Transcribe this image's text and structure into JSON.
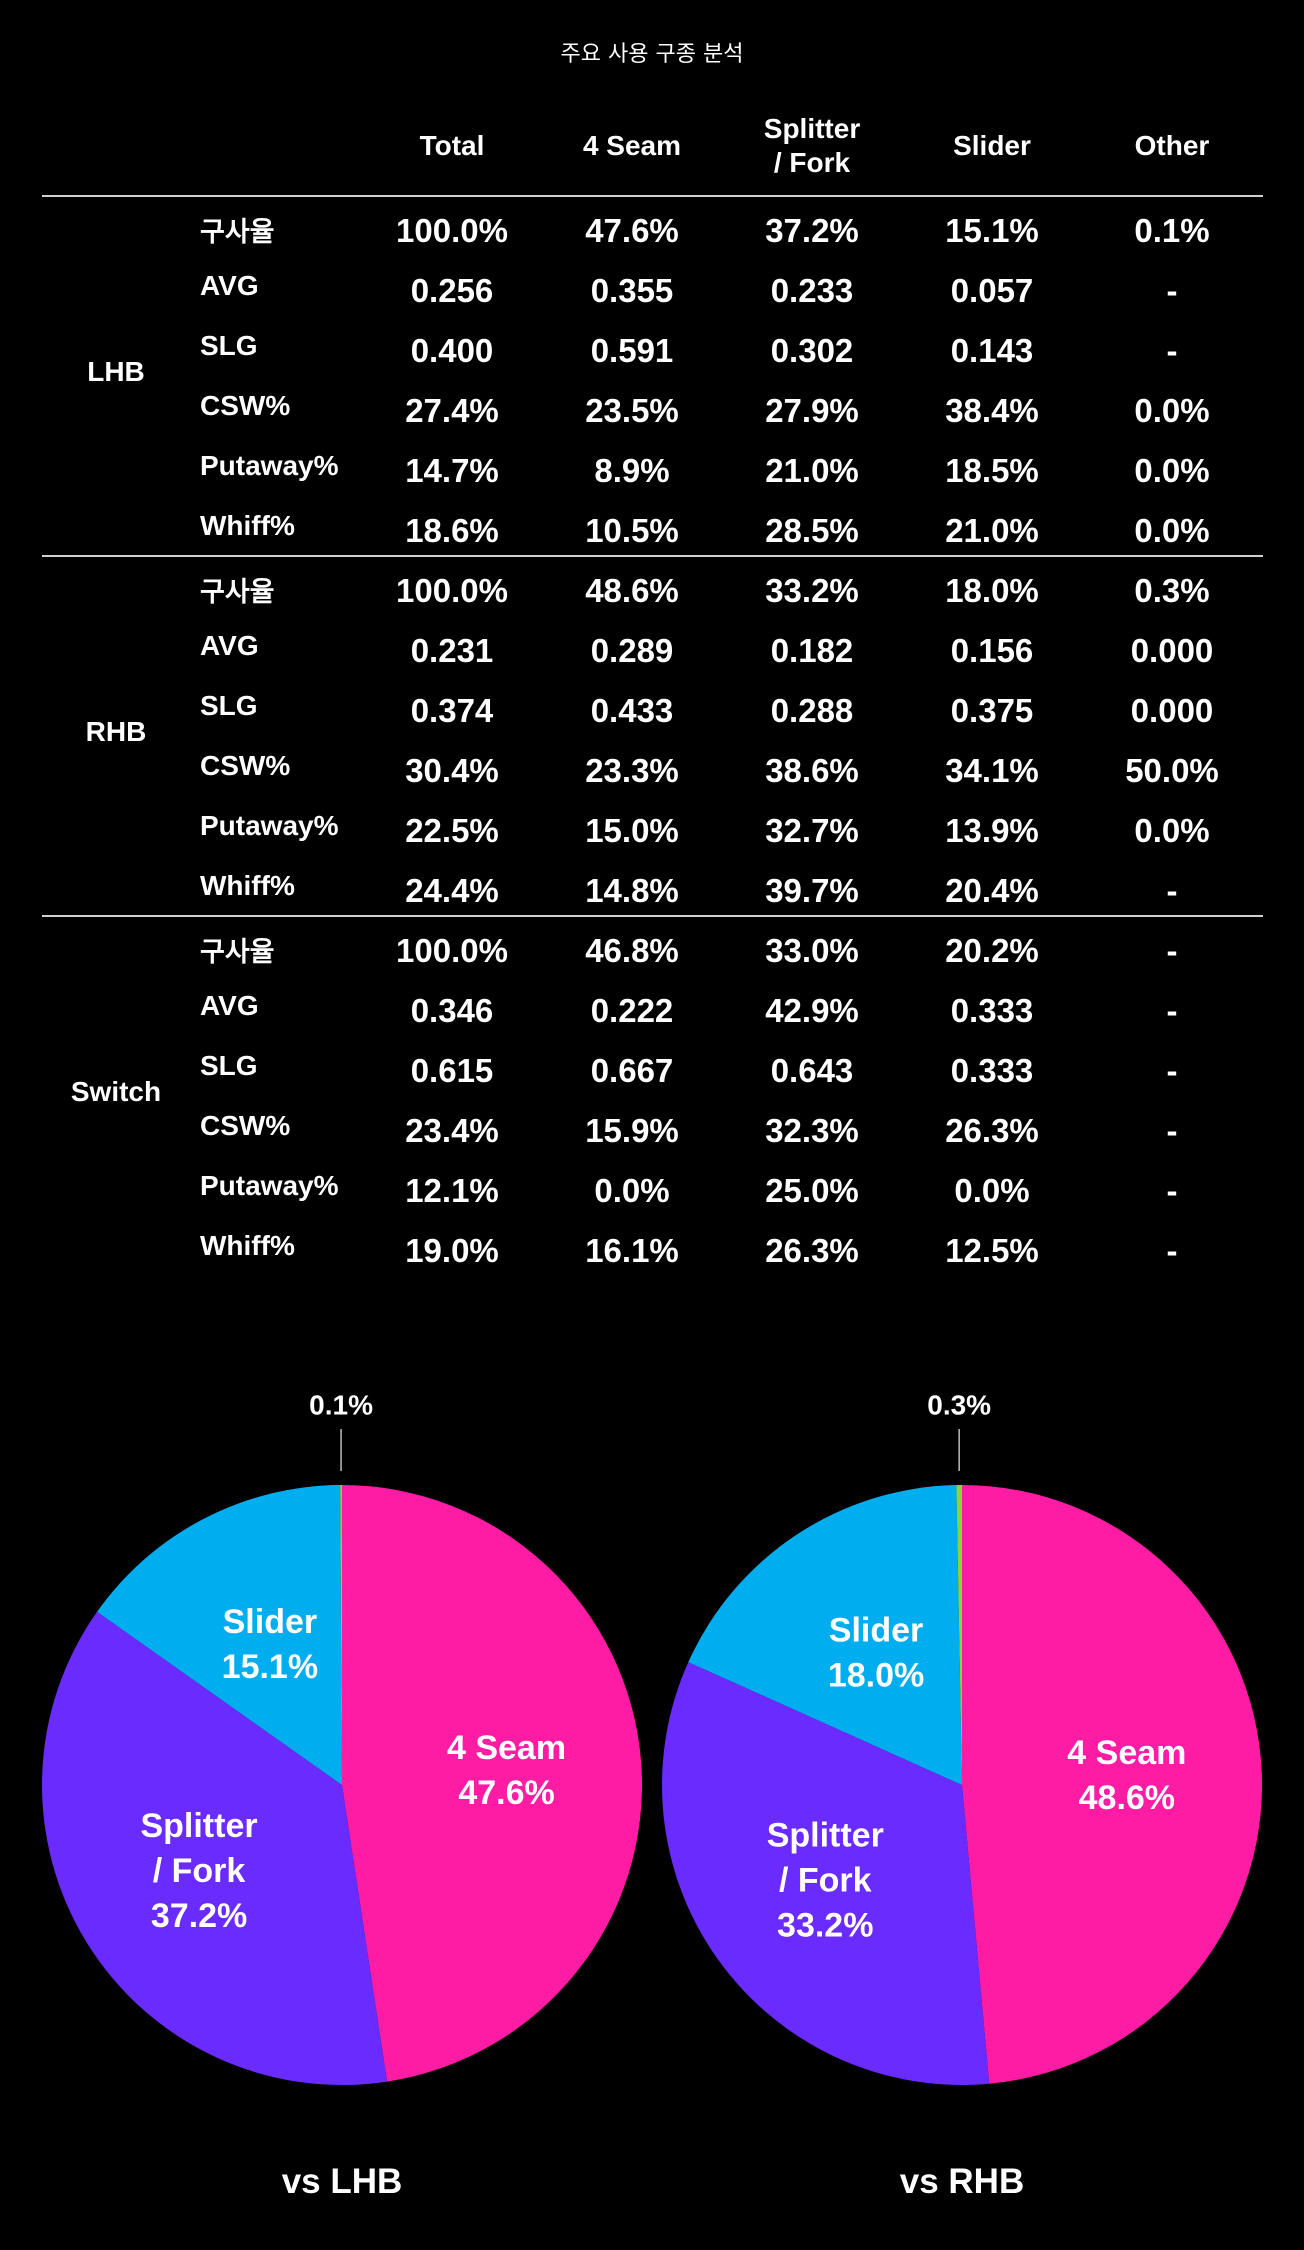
{
  "title": "주요 사용 구종 분석",
  "columns": [
    "Total",
    "4 Seam",
    "Splitter\n/ Fork",
    "Slider",
    "Other"
  ],
  "groups": [
    {
      "label": "LHB",
      "rows": [
        {
          "metric": "구사율",
          "values": [
            "100.0%",
            "47.6%",
            "37.2%",
            "15.1%",
            "0.1%"
          ]
        },
        {
          "metric": "AVG",
          "values": [
            "0.256",
            "0.355",
            "0.233",
            "0.057",
            "-"
          ]
        },
        {
          "metric": "SLG",
          "values": [
            "0.400",
            "0.591",
            "0.302",
            "0.143",
            "-"
          ]
        },
        {
          "metric": "CSW%",
          "values": [
            "27.4%",
            "23.5%",
            "27.9%",
            "38.4%",
            "0.0%"
          ]
        },
        {
          "metric": "Putaway%",
          "values": [
            "14.7%",
            "8.9%",
            "21.0%",
            "18.5%",
            "0.0%"
          ]
        },
        {
          "metric": "Whiff%",
          "values": [
            "18.6%",
            "10.5%",
            "28.5%",
            "21.0%",
            "0.0%"
          ]
        }
      ]
    },
    {
      "label": "RHB",
      "rows": [
        {
          "metric": "구사율",
          "values": [
            "100.0%",
            "48.6%",
            "33.2%",
            "18.0%",
            "0.3%"
          ]
        },
        {
          "metric": "AVG",
          "values": [
            "0.231",
            "0.289",
            "0.182",
            "0.156",
            "0.000"
          ]
        },
        {
          "metric": "SLG",
          "values": [
            "0.374",
            "0.433",
            "0.288",
            "0.375",
            "0.000"
          ]
        },
        {
          "metric": "CSW%",
          "values": [
            "30.4%",
            "23.3%",
            "38.6%",
            "34.1%",
            "50.0%"
          ]
        },
        {
          "metric": "Putaway%",
          "values": [
            "22.5%",
            "15.0%",
            "32.7%",
            "13.9%",
            "0.0%"
          ]
        },
        {
          "metric": "Whiff%",
          "values": [
            "24.4%",
            "14.8%",
            "39.7%",
            "20.4%",
            "-"
          ]
        }
      ]
    },
    {
      "label": "Switch",
      "rows": [
        {
          "metric": "구사율",
          "values": [
            "100.0%",
            "46.8%",
            "33.0%",
            "20.2%",
            "-"
          ]
        },
        {
          "metric": "AVG",
          "values": [
            "0.346",
            "0.222",
            "42.9%",
            "0.333",
            "-"
          ]
        },
        {
          "metric": "SLG",
          "values": [
            "0.615",
            "0.667",
            "0.643",
            "0.333",
            "-"
          ]
        },
        {
          "metric": "CSW%",
          "values": [
            "23.4%",
            "15.9%",
            "32.3%",
            "26.3%",
            "-"
          ]
        },
        {
          "metric": "Putaway%",
          "values": [
            "12.1%",
            "0.0%",
            "25.0%",
            "0.0%",
            "-"
          ]
        },
        {
          "metric": "Whiff%",
          "values": [
            "19.0%",
            "16.1%",
            "26.3%",
            "12.5%",
            "-"
          ]
        }
      ]
    }
  ],
  "colors": {
    "4 Seam": "#FF1CA5",
    "Splitter / Fork": "#6A2BFF",
    "Slider": "#00AEEF",
    "Other": "#8CD43C"
  },
  "chart_data": [
    {
      "type": "pie",
      "title": "vs LHB",
      "slices": [
        {
          "label": "4 Seam",
          "value": 47.6,
          "display": "47.6%"
        },
        {
          "label": "Splitter\n/ Fork",
          "value": 37.2,
          "display": "37.2%"
        },
        {
          "label": "Slider",
          "value": 15.1,
          "display": "15.1%"
        },
        {
          "label": "",
          "value": 0.1,
          "display": "0.1%"
        }
      ]
    },
    {
      "type": "pie",
      "title": "vs RHB",
      "slices": [
        {
          "label": "4 Seam",
          "value": 48.6,
          "display": "48.6%"
        },
        {
          "label": "Splitter\n/ Fork",
          "value": 33.2,
          "display": "33.2%"
        },
        {
          "label": "Slider",
          "value": 18.0,
          "display": "18.0%"
        },
        {
          "label": "",
          "value": 0.3,
          "display": "0.3%"
        }
      ]
    }
  ]
}
